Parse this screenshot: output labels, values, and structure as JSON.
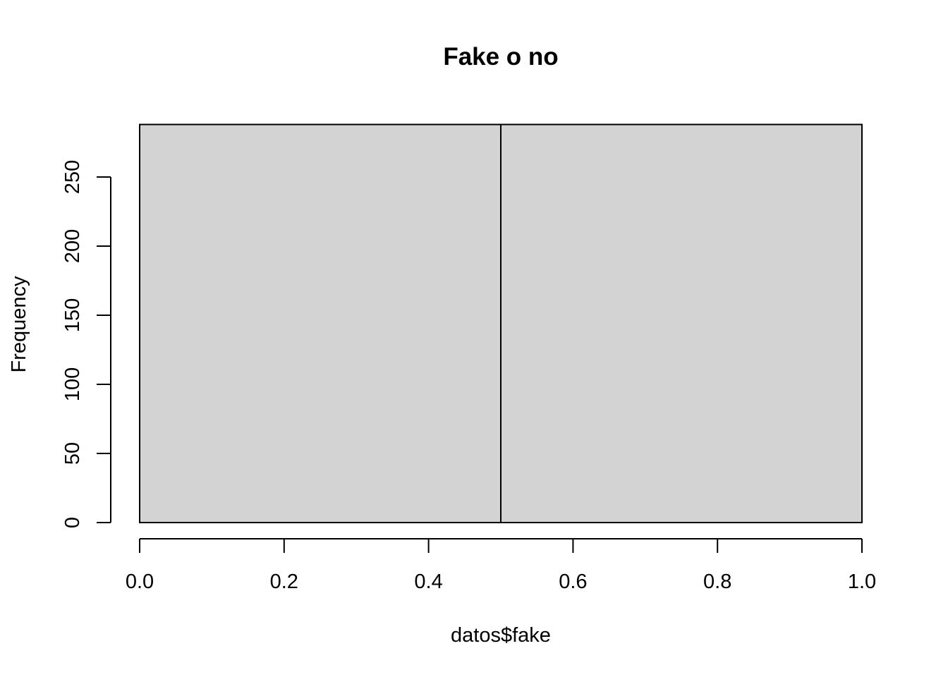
{
  "chart_data": {
    "type": "bar",
    "title": "Fake o no",
    "xlabel": "datos$fake",
    "ylabel": "Frequency",
    "bins": [
      {
        "x0": 0.0,
        "x1": 0.5,
        "count": 288
      },
      {
        "x0": 0.5,
        "x1": 1.0,
        "count": 288
      }
    ],
    "xlim": [
      0,
      1
    ],
    "ylim": [
      0,
      288
    ],
    "xticks": [
      "0.0",
      "0.2",
      "0.4",
      "0.6",
      "0.8",
      "1.0"
    ],
    "yticks": [
      "0",
      "50",
      "100",
      "150",
      "200",
      "250"
    ],
    "grid": false,
    "bar_fill": "#d3d3d3",
    "bar_stroke": "#000000"
  }
}
